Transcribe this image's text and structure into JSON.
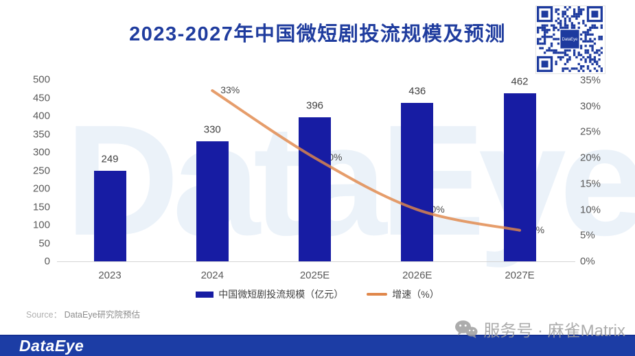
{
  "header": {
    "title": "2023-2027年中国微短剧投流规模及预测",
    "qr_label": "DataEye"
  },
  "chart_data": {
    "type": "bar+line",
    "title": "2023-2027年中国微短剧投流规模及预测",
    "categories": [
      "2023",
      "2024",
      "2025E",
      "2026E",
      "2027E"
    ],
    "series": [
      {
        "name": "中国微短剧投流规模（亿元）",
        "type": "bar",
        "values": [
          249,
          330,
          396,
          436,
          462
        ],
        "color": "#171CA3"
      },
      {
        "name": "增速（%）",
        "type": "line",
        "values": [
          null,
          33,
          20,
          10,
          6
        ],
        "labels": [
          "",
          "33%",
          "20%",
          "10%",
          "6%"
        ],
        "color": "#E0874A"
      }
    ],
    "left_axis": {
      "min": 0,
      "max": 500,
      "step": 50,
      "ticks": [
        "0",
        "50",
        "100",
        "150",
        "200",
        "250",
        "300",
        "350",
        "400",
        "450",
        "500"
      ]
    },
    "right_axis": {
      "min": 0,
      "max": 35,
      "step": 5,
      "ticks": [
        "0%",
        "5%",
        "10%",
        "15%",
        "20%",
        "25%",
        "30%",
        "35%"
      ]
    },
    "legend": [
      "中国微短剧投流规模（亿元）",
      "增速（%）"
    ],
    "legend_position": "bottom",
    "grid": false
  },
  "source": {
    "label": "Source：",
    "text": "DataEye研究院预估"
  },
  "watermarks": {
    "chart": "DataEye",
    "footer": "服务号 · 麻雀Matrix"
  },
  "footer": {
    "logo": "DataEye"
  },
  "colors": {
    "title": "#1F3C9E",
    "bar": "#171CA3",
    "line": "#E0874A",
    "axis_text": "#595959",
    "data_label": "#404040",
    "footer_bar": "#1C3DA5",
    "qr_module": "#1D3A9E",
    "watermark_gray": "#9e9e9e"
  }
}
